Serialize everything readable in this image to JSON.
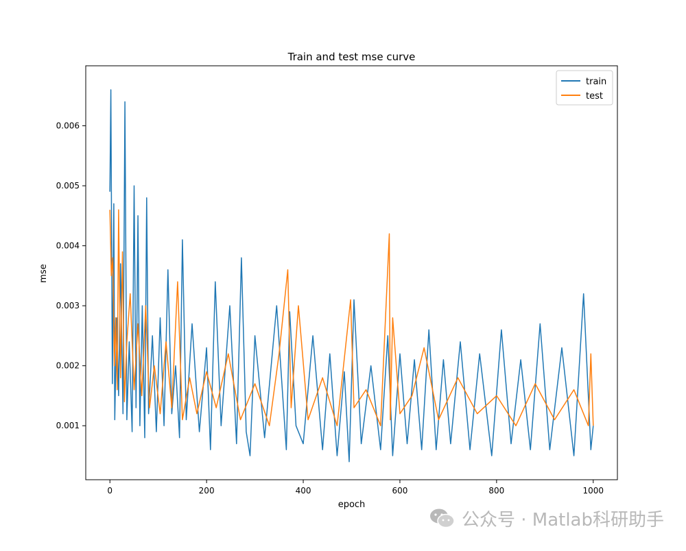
{
  "chart_data": {
    "type": "line",
    "title": "Train and test mse curve",
    "xlabel": "epoch",
    "ylabel": "mse",
    "xlim": [
      -50,
      1050
    ],
    "ylim": [
      0.0001,
      0.007
    ],
    "xticks": [
      0,
      200,
      400,
      600,
      800,
      1000
    ],
    "xtick_labels": [
      "0",
      "200",
      "400",
      "600",
      "800",
      "1000"
    ],
    "yticks": [
      0.001,
      0.002,
      0.003,
      0.004,
      0.005,
      0.006
    ],
    "ytick_labels": [
      "0.001",
      "0.002",
      "0.003",
      "0.004",
      "0.005",
      "0.006"
    ],
    "legend_position": "top-right",
    "series": [
      {
        "name": "train",
        "color": "#1f77b4",
        "x": [
          0,
          2,
          5,
          8,
          10,
          14,
          18,
          22,
          27,
          31,
          35,
          40,
          46,
          50,
          54,
          58,
          62,
          67,
          72,
          76,
          80,
          88,
          96,
          104,
          112,
          120,
          128,
          136,
          144,
          150,
          158,
          170,
          185,
          200,
          208,
          218,
          230,
          248,
          262,
          272,
          282,
          290,
          300,
          320,
          345,
          365,
          372,
          385,
          400,
          420,
          440,
          455,
          470,
          485,
          495,
          505,
          520,
          540,
          560,
          575,
          585,
          600,
          615,
          630,
          645,
          660,
          675,
          690,
          705,
          725,
          745,
          765,
          790,
          810,
          830,
          850,
          870,
          890,
          910,
          935,
          960,
          980,
          995,
          1000
        ],
        "values": [
          0.0049,
          0.0066,
          0.0017,
          0.0047,
          0.0011,
          0.0028,
          0.0015,
          0.0037,
          0.0012,
          0.0064,
          0.0011,
          0.0024,
          0.0009,
          0.005,
          0.0013,
          0.0045,
          0.001,
          0.003,
          0.0008,
          0.0048,
          0.0012,
          0.0025,
          0.0009,
          0.0028,
          0.001,
          0.0036,
          0.0012,
          0.002,
          0.0008,
          0.0041,
          0.0011,
          0.0027,
          0.0009,
          0.0023,
          0.0006,
          0.0034,
          0.001,
          0.003,
          0.0007,
          0.0038,
          0.0009,
          0.0005,
          0.0025,
          0.0008,
          0.003,
          0.0006,
          0.0029,
          0.001,
          0.0007,
          0.0025,
          0.0006,
          0.0022,
          0.0005,
          0.0019,
          0.0004,
          0.0031,
          0.0007,
          0.002,
          0.0006,
          0.0025,
          0.0005,
          0.0022,
          0.0007,
          0.0021,
          0.0006,
          0.0026,
          0.0006,
          0.0021,
          0.0007,
          0.0024,
          0.0006,
          0.0022,
          0.0005,
          0.0026,
          0.0007,
          0.0021,
          0.0006,
          0.0027,
          0.0006,
          0.0023,
          0.0005,
          0.0032,
          0.0006,
          0.001
        ]
      },
      {
        "name": "test",
        "color": "#ff7f0e",
        "x": [
          0,
          3,
          6,
          9,
          12,
          15,
          18,
          22,
          26,
          30,
          35,
          42,
          50,
          58,
          66,
          74,
          82,
          92,
          104,
          116,
          128,
          140,
          150,
          165,
          180,
          200,
          220,
          245,
          270,
          300,
          330,
          350,
          368,
          375,
          390,
          410,
          440,
          470,
          498,
          505,
          530,
          560,
          578,
          580,
          585,
          600,
          625,
          650,
          680,
          720,
          760,
          800,
          840,
          880,
          920,
          960,
          990,
          995,
          1000
        ],
        "values": [
          0.0046,
          0.0035,
          0.0038,
          0.002,
          0.0028,
          0.0016,
          0.0046,
          0.0018,
          0.0039,
          0.0014,
          0.0024,
          0.0032,
          0.0016,
          0.0027,
          0.0015,
          0.003,
          0.0013,
          0.002,
          0.0012,
          0.0024,
          0.0013,
          0.0034,
          0.0011,
          0.0018,
          0.0012,
          0.0019,
          0.0013,
          0.0022,
          0.0011,
          0.0017,
          0.001,
          0.0022,
          0.0036,
          0.0013,
          0.003,
          0.0011,
          0.0018,
          0.001,
          0.0031,
          0.0013,
          0.0016,
          0.001,
          0.0042,
          0.0011,
          0.0028,
          0.0012,
          0.0015,
          0.0023,
          0.0011,
          0.0018,
          0.0012,
          0.0015,
          0.001,
          0.0017,
          0.0011,
          0.0016,
          0.001,
          0.0022,
          0.001
        ]
      }
    ]
  },
  "watermark": {
    "icon": "wechat-icon",
    "text": "公众号 · Matlab科研助手"
  }
}
